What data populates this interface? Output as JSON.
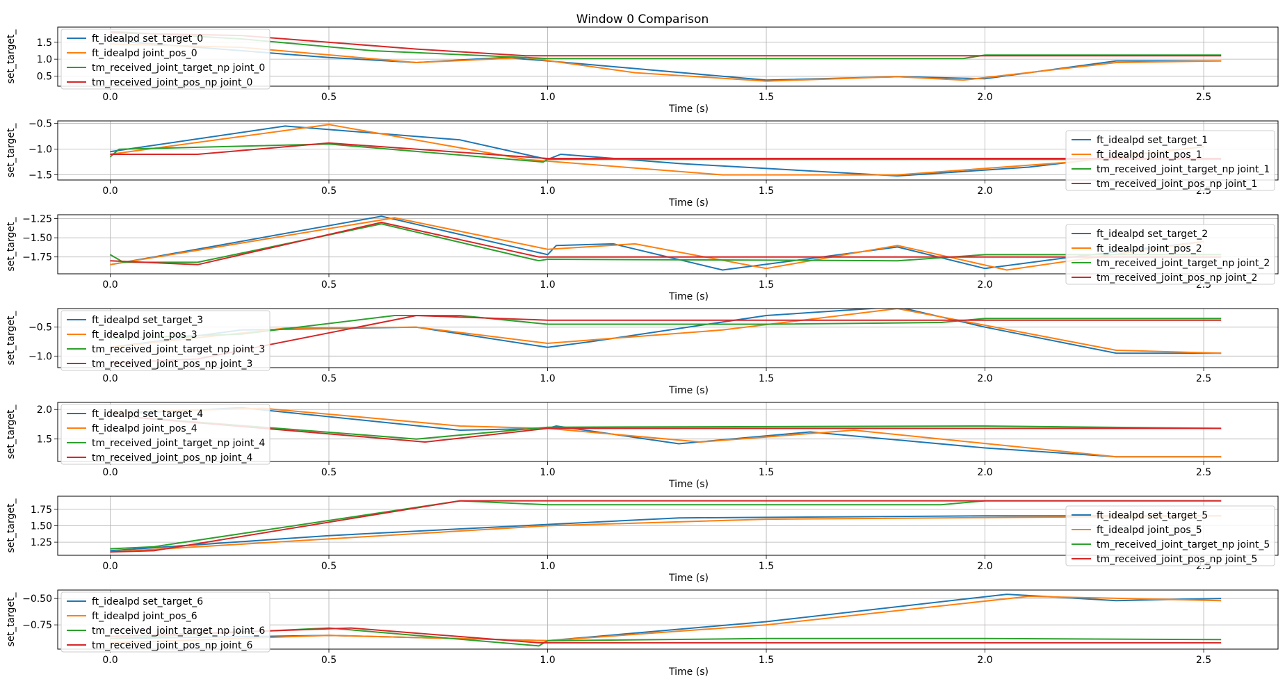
{
  "figure_title": "Window 0 Comparison",
  "colors": {
    "blue": "#1f77b4",
    "orange": "#ff7f0e",
    "green": "#2ca02c",
    "red": "#d62728"
  },
  "chart_data": [
    {
      "type": "line",
      "xlabel": "Time (s)",
      "ylabel": "set_target_",
      "xlim": [
        -0.12,
        2.67
      ],
      "ylim": [
        0.2,
        1.95
      ],
      "xticks": [
        "0.0",
        "0.5",
        "1.0",
        "1.5",
        "2.0",
        "2.5"
      ],
      "yticks": [
        0.5,
        1.0,
        1.5
      ],
      "ytick_labels": [
        "0.5",
        "1.0",
        "1.5"
      ],
      "grid": true,
      "legend": "upper left",
      "series": [
        {
          "name": "ft_idealpd set_target_0",
          "color": "#1f77b4",
          "x": [
            0,
            0.2,
            0.5,
            0.7,
            0.9,
            1.0,
            1.5,
            1.8,
            2.0,
            2.3,
            2.54
          ],
          "y": [
            1.55,
            1.35,
            1.05,
            0.9,
            1.05,
            0.95,
            0.38,
            0.48,
            0.42,
            0.95,
            0.95
          ]
        },
        {
          "name": "ft_idealpd joint_pos_0",
          "color": "#ff7f0e",
          "x": [
            0,
            0.3,
            0.7,
            0.95,
            1.2,
            1.5,
            1.8,
            1.95,
            2.3,
            2.54
          ],
          "y": [
            1.45,
            1.35,
            0.9,
            1.05,
            0.6,
            0.35,
            0.48,
            0.38,
            0.9,
            0.95
          ]
        },
        {
          "name": "tm_received_joint_target_np joint_0",
          "color": "#2ca02c",
          "x": [
            0,
            0.3,
            0.6,
            0.95,
            1.0,
            1.95,
            2.0,
            2.54
          ],
          "y": [
            1.82,
            1.6,
            1.25,
            1.05,
            1.02,
            1.02,
            1.12,
            1.12
          ]
        },
        {
          "name": "tm_received_joint_pos_np joint_0",
          "color": "#d62728",
          "x": [
            0,
            0.3,
            0.7,
            0.95,
            1.0,
            2.54
          ],
          "y": [
            1.78,
            1.7,
            1.3,
            1.1,
            1.1,
            1.1
          ]
        }
      ]
    },
    {
      "type": "line",
      "xlabel": "Time (s)",
      "ylabel": "set_target_",
      "xlim": [
        -0.12,
        2.67
      ],
      "ylim": [
        -1.6,
        -0.45
      ],
      "xticks": [
        "0.0",
        "0.5",
        "1.0",
        "1.5",
        "2.0",
        "2.5"
      ],
      "yticks": [
        -0.5,
        -1.0,
        -1.5
      ],
      "ytick_labels": [
        "−0.5",
        "−1.0",
        "−1.5"
      ],
      "grid": true,
      "legend": "lower right",
      "series": [
        {
          "name": "ft_idealpd set_target_1",
          "color": "#1f77b4",
          "x": [
            0,
            0.4,
            0.8,
            1.0,
            1.03,
            1.3,
            1.8,
            2.1,
            2.5
          ],
          "y": [
            -1.05,
            -0.55,
            -0.82,
            -1.2,
            -1.1,
            -1.28,
            -1.52,
            -1.35,
            -0.95
          ]
        },
        {
          "name": "ft_idealpd joint_pos_1",
          "color": "#ff7f0e",
          "x": [
            0,
            0.5,
            0.95,
            1.4,
            1.8,
            2.2,
            2.5
          ],
          "y": [
            -1.1,
            -0.52,
            -1.2,
            -1.5,
            -1.5,
            -1.25,
            -0.95
          ]
        },
        {
          "name": "tm_received_joint_target_np joint_1",
          "color": "#2ca02c",
          "x": [
            0,
            0.02,
            0.5,
            0.99,
            1.0,
            2.54
          ],
          "y": [
            -1.15,
            -1.0,
            -0.9,
            -1.25,
            -1.2,
            -1.2
          ]
        },
        {
          "name": "tm_received_joint_pos_np joint_1",
          "color": "#d62728",
          "x": [
            0,
            0.2,
            0.5,
            1.0,
            2.54
          ],
          "y": [
            -1.1,
            -1.1,
            -0.88,
            -1.18,
            -1.18
          ]
        }
      ]
    },
    {
      "type": "line",
      "xlabel": "Time (s)",
      "ylabel": "set_target_",
      "xlim": [
        -0.12,
        2.67
      ],
      "ylim": [
        -1.97,
        -1.2
      ],
      "xticks": [
        "0.0",
        "0.5",
        "1.0",
        "1.5",
        "2.0",
        "2.5"
      ],
      "yticks": [
        -1.25,
        -1.5,
        -1.75
      ],
      "ytick_labels": [
        "−1.25",
        "−1.50",
        "−1.75"
      ],
      "grid": true,
      "legend": "lower right",
      "series": [
        {
          "name": "ft_idealpd set_target_2",
          "color": "#1f77b4",
          "x": [
            0,
            0.1,
            0.62,
            1.0,
            1.02,
            1.15,
            1.4,
            1.8,
            2.0,
            2.2,
            2.5
          ],
          "y": [
            -1.85,
            -1.75,
            -1.22,
            -1.72,
            -1.6,
            -1.58,
            -1.92,
            -1.62,
            -1.9,
            -1.75,
            -1.55
          ]
        },
        {
          "name": "ft_idealpd joint_pos_2",
          "color": "#ff7f0e",
          "x": [
            0,
            0.65,
            1.0,
            1.2,
            1.5,
            1.8,
            2.05,
            2.5
          ],
          "y": [
            -1.85,
            -1.24,
            -1.65,
            -1.58,
            -1.9,
            -1.6,
            -1.92,
            -1.55
          ]
        },
        {
          "name": "tm_received_joint_target_np joint_2",
          "color": "#2ca02c",
          "x": [
            0,
            0.03,
            0.2,
            0.62,
            0.98,
            1.0,
            1.8,
            2.0,
            2.54
          ],
          "y": [
            -1.72,
            -1.82,
            -1.82,
            -1.32,
            -1.8,
            -1.78,
            -1.8,
            -1.72,
            -1.72
          ]
        },
        {
          "name": "tm_received_joint_pos_np joint_2",
          "color": "#d62728",
          "x": [
            0,
            0.2,
            0.62,
            0.98,
            1.0,
            2.54
          ],
          "y": [
            -1.8,
            -1.85,
            -1.3,
            -1.75,
            -1.75,
            -1.75
          ]
        }
      ]
    },
    {
      "type": "line",
      "xlabel": "Time (s)",
      "ylabel": "set_target_",
      "xlim": [
        -0.12,
        2.67
      ],
      "ylim": [
        -1.2,
        -0.18
      ],
      "xticks": [
        "0.0",
        "0.5",
        "1.0",
        "1.5",
        "2.0",
        "2.5"
      ],
      "yticks": [
        -0.5,
        -1.0
      ],
      "ytick_labels": [
        "−0.5",
        "−1.0"
      ],
      "grid": true,
      "legend": "upper left",
      "series": [
        {
          "name": "ft_idealpd set_target_3",
          "color": "#1f77b4",
          "x": [
            0,
            0.3,
            0.7,
            1.0,
            1.1,
            1.5,
            1.8,
            2.0,
            2.3,
            2.54
          ],
          "y": [
            -0.85,
            -0.55,
            -0.5,
            -0.85,
            -0.75,
            -0.3,
            -0.15,
            -0.5,
            -0.95,
            -0.95
          ]
        },
        {
          "name": "ft_idealpd joint_pos_3",
          "color": "#ff7f0e",
          "x": [
            0,
            0.4,
            0.7,
            1.0,
            1.4,
            1.8,
            2.3,
            2.54
          ],
          "y": [
            -0.85,
            -0.52,
            -0.5,
            -0.78,
            -0.55,
            -0.18,
            -0.9,
            -0.95
          ]
        },
        {
          "name": "tm_received_joint_target_np joint_3",
          "color": "#2ca02c",
          "x": [
            0,
            0.3,
            0.65,
            0.8,
            1.0,
            1.5,
            1.9,
            2.0,
            2.54
          ],
          "y": [
            -0.7,
            -0.62,
            -0.3,
            -0.3,
            -0.45,
            -0.45,
            -0.42,
            -0.35,
            -0.35
          ]
        },
        {
          "name": "tm_received_joint_pos_np joint_3",
          "color": "#d62728",
          "x": [
            0,
            0.2,
            0.7,
            1.0,
            2.54
          ],
          "y": [
            -1.12,
            -1.05,
            -0.3,
            -0.38,
            -0.38
          ]
        }
      ]
    },
    {
      "type": "line",
      "xlabel": "Time (s)",
      "ylabel": "set_target_",
      "xlim": [
        -0.12,
        2.67
      ],
      "ylim": [
        1.12,
        2.12
      ],
      "xticks": [
        "0.0",
        "0.5",
        "1.0",
        "1.5",
        "2.0",
        "2.5"
      ],
      "yticks": [
        1.5,
        2.0
      ],
      "ytick_labels": [
        "1.5",
        "2.0"
      ],
      "grid": true,
      "legend": "upper left",
      "series": [
        {
          "name": "ft_idealpd set_target_4",
          "color": "#1f77b4",
          "x": [
            0,
            0.3,
            0.8,
            1.0,
            1.02,
            1.3,
            1.6,
            2.0,
            2.3,
            2.54
          ],
          "y": [
            1.92,
            2.03,
            1.65,
            1.68,
            1.72,
            1.42,
            1.62,
            1.35,
            1.2,
            1.2
          ]
        },
        {
          "name": "ft_idealpd joint_pos_4",
          "color": "#ff7f0e",
          "x": [
            0,
            0.35,
            0.8,
            1.0,
            1.35,
            1.7,
            2.3,
            2.54
          ],
          "y": [
            1.95,
            2.02,
            1.72,
            1.68,
            1.45,
            1.65,
            1.2,
            1.2
          ]
        },
        {
          "name": "tm_received_joint_target_np joint_4",
          "color": "#2ca02c",
          "x": [
            0,
            0.7,
            1.0,
            2.0,
            2.54
          ],
          "y": [
            1.9,
            1.5,
            1.7,
            1.72,
            1.68
          ]
        },
        {
          "name": "tm_received_joint_pos_np joint_4",
          "color": "#d62728",
          "x": [
            0,
            0.72,
            1.0,
            2.54
          ],
          "y": [
            1.9,
            1.45,
            1.68,
            1.68
          ]
        }
      ]
    },
    {
      "type": "line",
      "xlabel": "Time (s)",
      "ylabel": "set_target_",
      "xlim": [
        -0.12,
        2.67
      ],
      "ylim": [
        1.05,
        1.95
      ],
      "xticks": [
        "0.0",
        "0.5",
        "1.0",
        "1.5",
        "2.0",
        "2.5"
      ],
      "yticks": [
        1.25,
        1.5,
        1.75
      ],
      "ytick_labels": [
        "1.25",
        "1.50",
        "1.75"
      ],
      "grid": true,
      "legend": "lower right",
      "series": [
        {
          "name": "ft_idealpd set_target_5",
          "color": "#1f77b4",
          "x": [
            0,
            0.5,
            1.0,
            1.3,
            2.0,
            2.54
          ],
          "y": [
            1.12,
            1.35,
            1.52,
            1.62,
            1.65,
            1.65
          ]
        },
        {
          "name": "ft_idealpd joint_pos_5",
          "color": "#ff7f0e",
          "x": [
            0,
            1.0,
            1.5,
            2.54
          ],
          "y": [
            1.1,
            1.5,
            1.6,
            1.65
          ]
        },
        {
          "name": "tm_received_joint_target_np joint_5",
          "color": "#2ca02c",
          "x": [
            0,
            0.1,
            0.8,
            1.0,
            1.9,
            2.0,
            2.54
          ],
          "y": [
            1.15,
            1.18,
            1.88,
            1.82,
            1.82,
            1.88,
            1.88
          ]
        },
        {
          "name": "tm_received_joint_pos_np joint_5",
          "color": "#d62728",
          "x": [
            0,
            0.1,
            0.8,
            1.0,
            2.54
          ],
          "y": [
            1.1,
            1.12,
            1.88,
            1.88,
            1.88
          ]
        }
      ]
    },
    {
      "type": "line",
      "xlabel": "Time (s)",
      "ylabel": "set_target_",
      "xlim": [
        -0.12,
        2.67
      ],
      "ylim": [
        -0.98,
        -0.42
      ],
      "xticks": [
        "0.0",
        "0.5",
        "1.0",
        "1.5",
        "2.0",
        "2.5"
      ],
      "yticks": [
        -0.5,
        -0.75
      ],
      "ytick_labels": [
        "−0.50",
        "−0.75"
      ],
      "grid": true,
      "legend": "upper left",
      "series": [
        {
          "name": "ft_idealpd set_target_6",
          "color": "#1f77b4",
          "x": [
            0,
            0.5,
            1.0,
            1.5,
            2.05,
            2.3,
            2.54
          ],
          "y": [
            -0.88,
            -0.85,
            -0.9,
            -0.72,
            -0.46,
            -0.52,
            -0.5
          ]
        },
        {
          "name": "ft_idealpd joint_pos_6",
          "color": "#ff7f0e",
          "x": [
            0,
            0.5,
            1.0,
            1.5,
            2.1,
            2.54
          ],
          "y": [
            -0.92,
            -0.85,
            -0.9,
            -0.75,
            -0.48,
            -0.52
          ]
        },
        {
          "name": "tm_received_joint_target_np joint_6",
          "color": "#2ca02c",
          "x": [
            0,
            0.5,
            0.98,
            1.0,
            1.5,
            2.0,
            2.54
          ],
          "y": [
            -0.88,
            -0.78,
            -0.95,
            -0.9,
            -0.88,
            -0.88,
            -0.89
          ]
        },
        {
          "name": "tm_received_joint_pos_np joint_6",
          "color": "#d62728",
          "x": [
            0,
            0.55,
            0.98,
            1.0,
            2.54
          ],
          "y": [
            -0.86,
            -0.78,
            -0.92,
            -0.92,
            -0.92
          ]
        }
      ]
    }
  ]
}
